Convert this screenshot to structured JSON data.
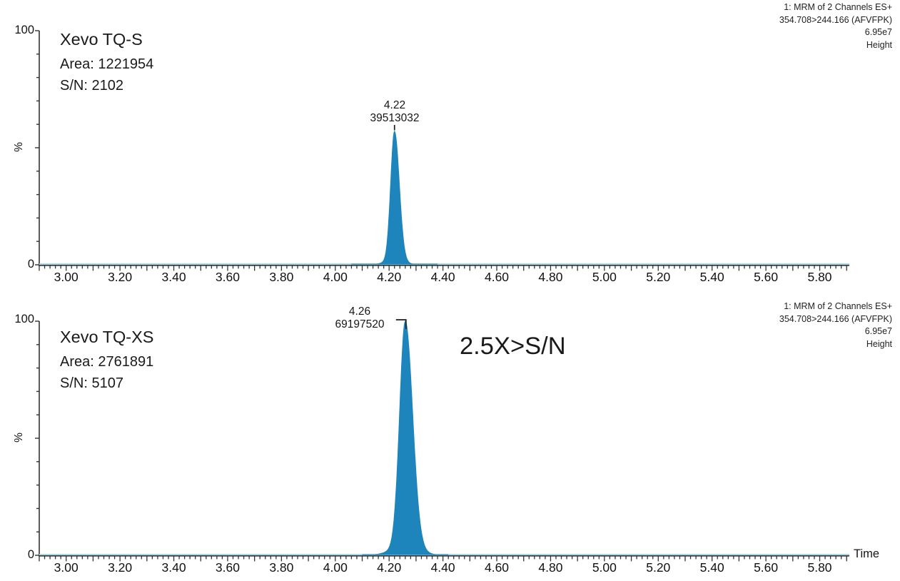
{
  "colors": {
    "peak_fill": "#1d85bc",
    "baseline_trace": "#a6d7e6",
    "axis": "#333333",
    "marker": "#1c1c1c",
    "text": "#111111"
  },
  "axis": {
    "ylabel": "%",
    "y_top": "100",
    "y_bottom": "0",
    "time_label": "Time",
    "x_tick_labels": [
      "3.00",
      "3.20",
      "3.40",
      "3.60",
      "3.80",
      "4.00",
      "4.20",
      "4.40",
      "4.60",
      "4.80",
      "5.00",
      "5.20",
      "5.40",
      "5.60",
      "5.80"
    ],
    "x_tick_start": 3.0,
    "x_tick_step": 0.2,
    "x_range": [
      2.9,
      5.91
    ],
    "y_range": [
      0,
      100
    ]
  },
  "panels": [
    {
      "instrument": "Xevo TQ-S",
      "area_text": "Area: 1221954",
      "sn_text": "S/N: 2102",
      "header_lines": [
        "1: MRM of 2 Channels ES+",
        "354.708>244.166 (AFVFPK)",
        "6.95e7",
        "Height"
      ],
      "peak": {
        "rt_label": "4.22",
        "height_label": "39513032",
        "rt": 4.22,
        "height_pct": 57
      },
      "annotation": "",
      "time_label": ""
    },
    {
      "instrument": "Xevo TQ-XS",
      "area_text": "Area: 2761891",
      "sn_text": "S/N: 5107",
      "header_lines": [
        "1: MRM of 2 Channels ES+",
        "354.708>244.166 (AFVFPK)",
        "6.95e7",
        "Height"
      ],
      "peak": {
        "rt_label": "4.26",
        "height_label": "69197520",
        "rt": 4.26,
        "height_pct": 100
      },
      "annotation": "2.5X>S/N",
      "time_label": "Time"
    }
  ],
  "chart_data": {
    "type": "area",
    "subtype": "MRM chromatogram comparison",
    "title": "",
    "xlabel": "Time",
    "ylabel": "%",
    "x_range": [
      2.9,
      5.91
    ],
    "y_range": [
      0,
      100
    ],
    "x_ticks": [
      3.0,
      3.2,
      3.4,
      3.6,
      3.8,
      4.0,
      4.2,
      4.4,
      4.6,
      4.8,
      5.0,
      5.2,
      5.4,
      5.6,
      5.8
    ],
    "grid": false,
    "legend": "none",
    "series": [
      {
        "name": "Xevo TQ-S",
        "channel": "1: MRM of 2 Channels ES+",
        "transition": "354.708>244.166 (AFVFPK)",
        "scale": "6.95e7",
        "display_mode": "Height",
        "peak_rt": 4.22,
        "peak_height": 39513032,
        "peak_height_pct_of_scale": 57,
        "area": 1221954,
        "sn": 2102,
        "baseline_value": 0
      },
      {
        "name": "Xevo TQ-XS",
        "channel": "1: MRM of 2 Channels ES+",
        "transition": "354.708>244.166 (AFVFPK)",
        "scale": "6.95e7",
        "display_mode": "Height",
        "peak_rt": 4.26,
        "peak_height": 69197520,
        "peak_height_pct_of_scale": 100,
        "area": 2761891,
        "sn": 5107,
        "baseline_value": 0
      }
    ],
    "annotation": "2.5X>S/N"
  }
}
